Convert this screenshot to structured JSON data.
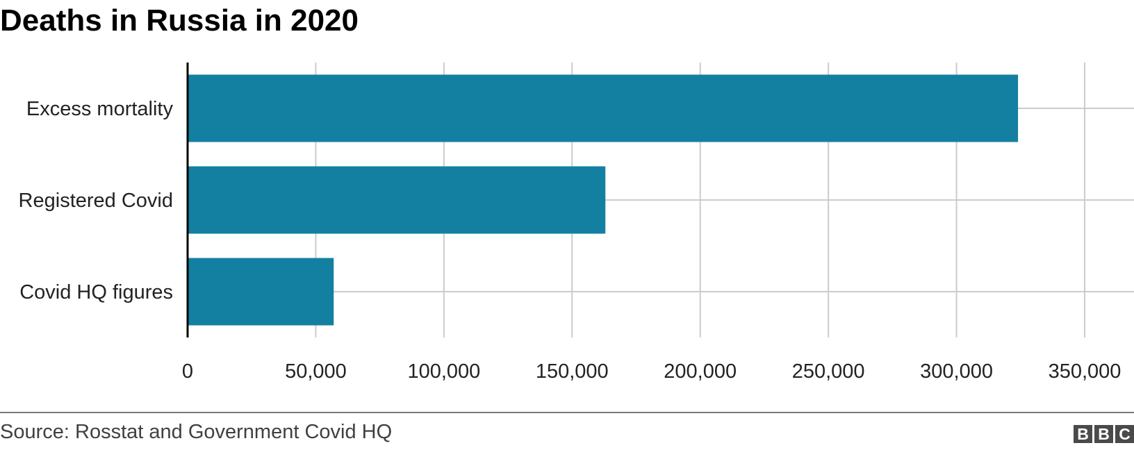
{
  "chart_data": {
    "type": "bar",
    "orientation": "horizontal",
    "title": "Deaths in Russia in 2020",
    "categories": [
      "Excess mortality",
      "Registered Covid",
      "Covid HQ figures"
    ],
    "values": [
      324000,
      163000,
      57000
    ],
    "xlim": [
      0,
      350000
    ],
    "xticks": [
      0,
      50000,
      100000,
      150000,
      200000,
      250000,
      300000,
      350000
    ],
    "xtick_labels": [
      "0",
      "50,000",
      "100,000",
      "150,000",
      "200,000",
      "250,000",
      "300,000",
      "350,000"
    ],
    "xlabel": "",
    "ylabel": "",
    "grid": true,
    "legend": "none",
    "bar_color": "#1380A1",
    "grid_color": "#cbcbcb",
    "axis_color": "#000000"
  },
  "footer": {
    "source": "Source: Rosstat and Government Covid HQ",
    "logo_letters": [
      "B",
      "B",
      "C"
    ]
  }
}
